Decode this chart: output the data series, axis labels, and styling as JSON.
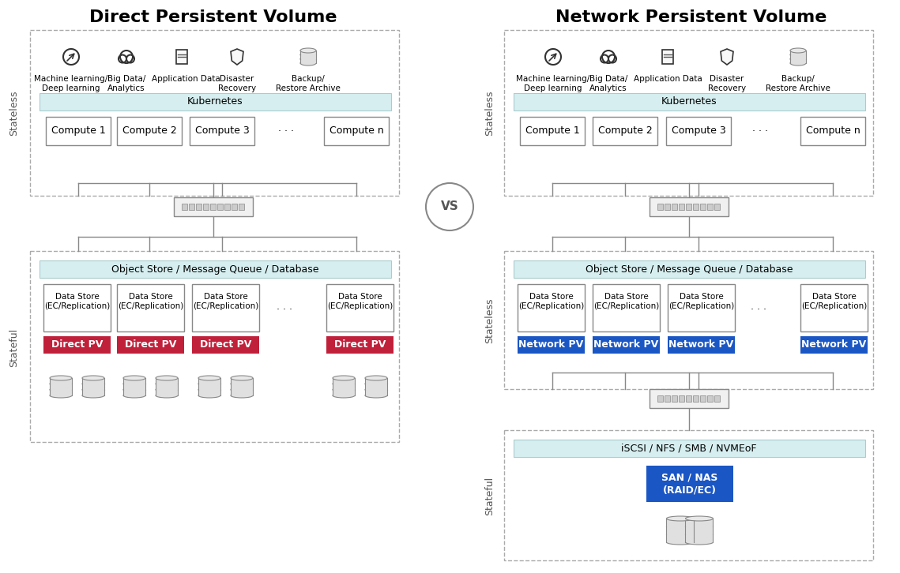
{
  "title_left": "Direct Persistent Volume",
  "title_right": "Network Persistent Volume",
  "vs_text": "VS",
  "bg_color": "#ffffff",
  "dashed_border_color": "#aaaaaa",
  "light_teal_bg": "#e8f5f5",
  "light_blue_box": "#1565c0",
  "red_pv_color": "#c0203a",
  "blue_pv_color": "#1a56c4",
  "box_border": "#999999",
  "kubernetes_bg": "#d6eef0",
  "icons": [
    "Machine learning/\nDeep learning",
    "Big Data/\nAnalytics",
    "Application Data",
    "Disaster\nRecovery",
    "Backup/\nRestore Archive"
  ],
  "compute_labels": [
    "Compute 1",
    "Compute 2",
    "Compute 3",
    "Compute n"
  ],
  "data_store_label": "Data Store\n(EC/Replication)",
  "object_store_label": "Object Store / Message Queue / Database",
  "kubernetes_label": "Kubernetes",
  "direct_pv_label": "Direct PV",
  "network_pv_label": "Network PV",
  "iscsi_label": "iSCSI / NFS / SMB / NVMEoF",
  "san_nas_label": "SAN / NAS\n(RAID/EC)",
  "stateless_label": "Stateless",
  "stateful_label": "Stateful"
}
